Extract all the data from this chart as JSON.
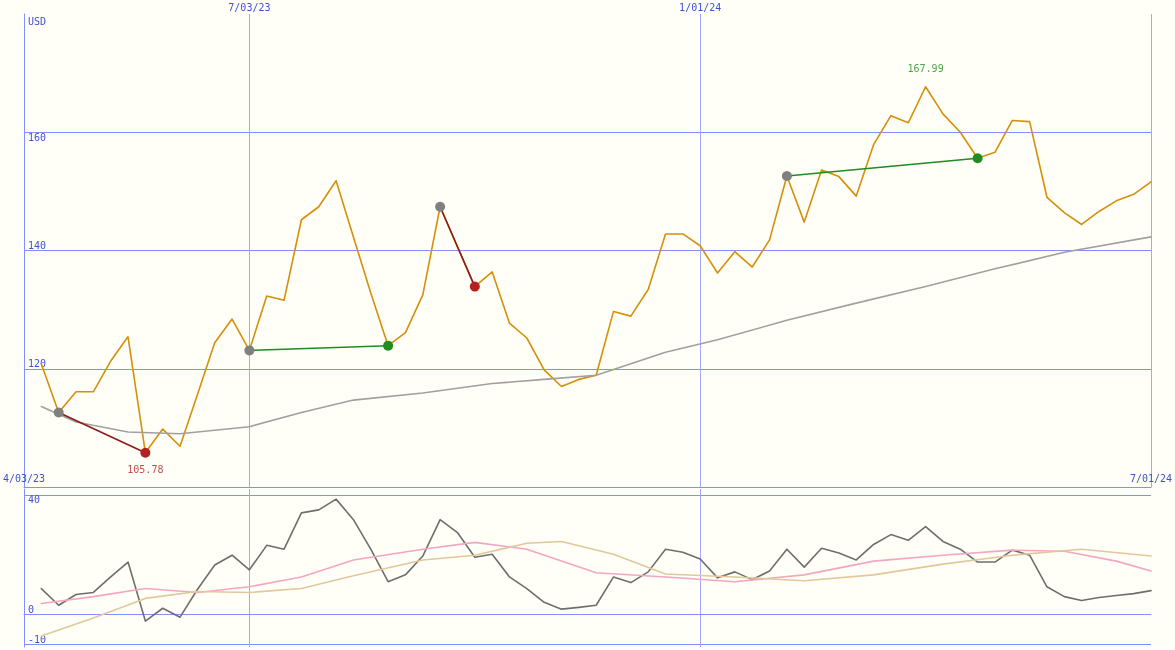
{
  "chart_data": [
    {
      "type": "line",
      "ylabel": "USD",
      "xlim": [
        "2023-04-03",
        "2024-07-01"
      ],
      "xticks": [
        {
          "value": "2023-04-03",
          "label": "4/03/23"
        },
        {
          "value": "2023-07-03",
          "label": null
        },
        {
          "value": "2024-01-01",
          "label": null
        },
        {
          "value": "2024-07-01",
          "label": "7/01/24"
        }
      ],
      "x2lim": [
        "2023-04-03",
        "2024-07-01"
      ],
      "x2ticks": [
        {
          "value": "2023-07-03",
          "label": "7/03/23"
        },
        {
          "value": "2024-01-01",
          "label": "1/01/24"
        }
      ],
      "ylim": [
        100,
        180
      ],
      "yticks": [
        120,
        140,
        160
      ],
      "grid": true,
      "marker": "none",
      "x": [
        "2023-04-10",
        "2023-04-17",
        "2023-04-24",
        "2023-05-01",
        "2023-05-08",
        "2023-05-15",
        "2023-05-22",
        "2023-05-29",
        "2023-06-05",
        "2023-06-12",
        "2023-06-19",
        "2023-06-26",
        "2023-07-03",
        "2023-07-10",
        "2023-07-17",
        "2023-07-24",
        "2023-07-31",
        "2023-08-07",
        "2023-08-14",
        "2023-08-21",
        "2023-08-28",
        "2023-09-04",
        "2023-09-11",
        "2023-09-18",
        "2023-09-25",
        "2023-10-02",
        "2023-10-09",
        "2023-10-16",
        "2023-10-23",
        "2023-10-30",
        "2023-11-06",
        "2023-11-13",
        "2023-11-20",
        "2023-11-27",
        "2023-12-04",
        "2023-12-11",
        "2023-12-18",
        "2023-12-25",
        "2024-01-01",
        "2024-01-08",
        "2024-01-15",
        "2024-01-22",
        "2024-01-29",
        "2024-02-05",
        "2024-02-12",
        "2024-02-19",
        "2024-02-26",
        "2024-03-04",
        "2024-03-11",
        "2024-03-18",
        "2024-03-25",
        "2024-04-01",
        "2024-04-08",
        "2024-04-15",
        "2024-04-22",
        "2024-04-29",
        "2024-05-06",
        "2024-05-13",
        "2024-05-20",
        "2024-05-27",
        "2024-06-03",
        "2024-06-10",
        "2024-06-17",
        "2024-06-24",
        "2024-07-01"
      ],
      "series": [
        {
          "color": "#d4900a",
          "values": [
            120.8,
            112.6,
            116.1,
            116.1,
            121.3,
            125.4,
            105.8,
            109.8,
            106.9,
            115.6,
            124.4,
            128.4,
            123.1,
            132.3,
            131.6,
            145.2,
            147.4,
            151.8,
            142.3,
            132.8,
            123.9,
            126.1,
            132.5,
            147.4,
            140.6,
            133.9,
            136.4,
            127.7,
            125.2,
            119.8,
            117,
            118.2,
            118.9,
            129.7,
            128.9,
            133.4,
            142.8,
            142.8,
            140.8,
            136.2,
            139.8,
            137.2,
            141.8,
            152.6,
            144.8,
            153.6,
            152.5,
            149.2,
            157.9,
            162.8,
            161.6,
            167.7,
            163.1,
            160,
            155.6,
            156.6,
            162,
            161.8,
            149,
            146.4,
            144.4,
            146.6,
            148.4,
            149.5,
            151.6
          ]
        },
        {
          "color": "#a0a0a0",
          "x": [
            "2023-04-10",
            "2023-04-24",
            "2023-05-15",
            "2023-06-05",
            "2023-07-03",
            "2023-07-24",
            "2023-08-14",
            "2023-09-11",
            "2023-10-09",
            "2023-10-30",
            "2023-11-20",
            "2023-12-18",
            "2024-01-08",
            "2024-02-05",
            "2024-03-04",
            "2024-04-01",
            "2024-04-29",
            "2024-05-27",
            "2024-07-01"
          ],
          "values": [
            113.6,
            111,
            109.3,
            109,
            110.2,
            112.6,
            114.7,
            115.9,
            117.5,
            118.2,
            118.9,
            122.8,
            124.9,
            128.2,
            131.1,
            133.9,
            136.9,
            139.7,
            142.3
          ]
        },
        {
          "color": "#8b1a1a",
          "marker": "circle",
          "x": [
            "2023-04-17",
            "2023-05-22"
          ],
          "values": [
            112.6,
            105.8
          ],
          "colors": [
            "#808080",
            "#b22222"
          ]
        },
        {
          "color": "#228b22",
          "marker": "circle",
          "x": [
            "2023-07-03",
            "2023-08-28"
          ],
          "values": [
            123.1,
            123.9
          ],
          "colors": [
            "#808080",
            "#228b22"
          ]
        },
        {
          "color": "#8b1a1a",
          "marker": "circle",
          "x": [
            "2023-09-18",
            "2023-10-02"
          ],
          "values": [
            147.4,
            133.9
          ],
          "colors": [
            "#808080",
            "#b22222"
          ]
        },
        {
          "color": "#228b22",
          "marker": "circle",
          "x": [
            "2024-02-05",
            "2024-04-22"
          ],
          "values": [
            152.6,
            155.6
          ],
          "colors": [
            "#808080",
            "#228b22"
          ]
        }
      ],
      "annotations": [
        {
          "text": "105.78",
          "x": "2023-05-22",
          "y": 105.78
        },
        {
          "text": "167.99",
          "x": "2024-04-01",
          "y": 167.99
        }
      ]
    },
    {
      "type": "line",
      "xlim": [
        "2023-04-03",
        "2024-07-01"
      ],
      "xticks": [
        {
          "value": "2023-07-03",
          "label": null
        },
        {
          "value": "2024-01-01",
          "label": null
        }
      ],
      "ylim": [
        -11,
        42
      ],
      "yticks": [
        -10,
        0,
        40
      ],
      "grid": true,
      "marker": "none",
      "tick_labels": "y",
      "x": [
        "2023-04-10",
        "2023-04-17",
        "2023-04-24",
        "2023-05-01",
        "2023-05-08",
        "2023-05-15",
        "2023-05-22",
        "2023-05-29",
        "2023-06-05",
        "2023-06-12",
        "2023-06-19",
        "2023-06-26",
        "2023-07-03",
        "2023-07-10",
        "2023-07-17",
        "2023-07-24",
        "2023-07-31",
        "2023-08-07",
        "2023-08-14",
        "2023-08-21",
        "2023-08-28",
        "2023-09-04",
        "2023-09-11",
        "2023-09-18",
        "2023-09-25",
        "2023-10-02",
        "2023-10-09",
        "2023-10-16",
        "2023-10-23",
        "2023-10-30",
        "2023-11-06",
        "2023-11-13",
        "2023-11-20",
        "2023-11-27",
        "2023-12-04",
        "2023-12-11",
        "2023-12-18",
        "2023-12-25",
        "2024-01-01",
        "2024-01-08",
        "2024-01-15",
        "2024-01-22",
        "2024-01-29",
        "2024-02-05",
        "2024-02-12",
        "2024-02-19",
        "2024-02-26",
        "2024-03-04",
        "2024-03-11",
        "2024-03-18",
        "2024-03-25",
        "2024-04-01",
        "2024-04-08",
        "2024-04-15",
        "2024-04-22",
        "2024-04-29",
        "2024-05-06",
        "2024-05-13",
        "2024-05-20",
        "2024-05-27",
        "2024-06-03",
        "2024-06-10",
        "2024-06-17",
        "2024-06-24",
        "2024-07-01"
      ],
      "series": [
        {
          "color": "#6e6e6e",
          "values": [
            8.6,
            3,
            6.6,
            7.3,
            12.5,
            17.5,
            -2.3,
            2,
            -1,
            8.3,
            16.5,
            19.8,
            14.9,
            23.1,
            21.8,
            34,
            35,
            38.6,
            31.7,
            21.8,
            10.9,
            13.2,
            19.5,
            31.7,
            27.4,
            19.1,
            20.1,
            12.5,
            8.6,
            4,
            1.7,
            2.3,
            3,
            12.5,
            10.6,
            14.2,
            21.8,
            20.8,
            18.5,
            12.2,
            14.2,
            11.6,
            14.5,
            21.8,
            15.8,
            22.1,
            20.5,
            18.2,
            23.4,
            26.7,
            24.8,
            29.4,
            24.4,
            21.8,
            17.5,
            17.5,
            21.5,
            19.8,
            9.2,
            5.9,
            4.6,
            5.6,
            6.3,
            6.9,
            7.9
          ]
        },
        {
          "color": "#f4a6c0",
          "x": [
            "2023-04-10",
            "2023-05-01",
            "2023-05-22",
            "2023-06-12",
            "2023-07-03",
            "2023-07-24",
            "2023-08-14",
            "2023-09-11",
            "2023-10-02",
            "2023-10-23",
            "2023-11-20",
            "2023-12-18",
            "2024-01-15",
            "2024-02-12",
            "2024-03-11",
            "2024-04-08",
            "2024-05-06",
            "2024-05-27",
            "2024-06-17",
            "2024-07-01"
          ],
          "values": [
            3.6,
            5.9,
            8.6,
            7.3,
            9.2,
            12.5,
            18.2,
            21.8,
            24.1,
            21.8,
            13.9,
            12.5,
            10.9,
            13.2,
            17.8,
            19.8,
            21.5,
            21.1,
            17.8,
            14.5
          ]
        },
        {
          "color": "#e0c89a",
          "x": [
            "2023-04-10",
            "2023-05-01",
            "2023-05-22",
            "2023-06-12",
            "2023-07-03",
            "2023-07-24",
            "2023-08-14",
            "2023-09-11",
            "2023-10-02",
            "2023-10-23",
            "2023-11-06",
            "2023-11-27",
            "2023-12-18",
            "2024-01-15",
            "2024-02-12",
            "2024-03-11",
            "2024-04-08",
            "2024-05-06",
            "2024-06-03",
            "2024-07-01"
          ],
          "values": [
            -7.3,
            -1.3,
            5.3,
            7.6,
            7.3,
            8.6,
            12.9,
            18.2,
            19.8,
            23.8,
            24.4,
            20.1,
            13.5,
            12.5,
            11.2,
            13.2,
            16.8,
            19.8,
            21.8,
            19.5
          ]
        }
      ]
    }
  ]
}
